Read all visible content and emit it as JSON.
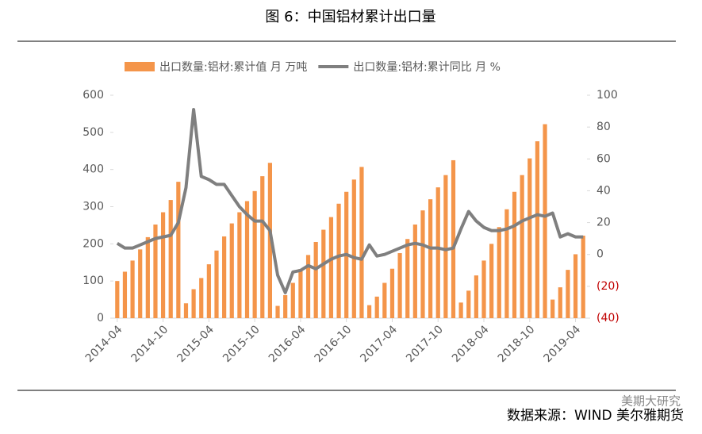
{
  "chart_data": {
    "type": "bar_line",
    "title": "图 6：中国铝材累计出口量",
    "source": "数据来源：WIND 美尔雅期货",
    "watermark": "美期大研究",
    "categories": [
      "2014-04",
      null,
      null,
      null,
      null,
      null,
      "2014-10",
      null,
      null,
      null,
      null,
      null,
      "2015-04",
      null,
      null,
      null,
      null,
      null,
      "2015-10",
      null,
      null,
      null,
      null,
      null,
      "2016-04",
      null,
      null,
      null,
      null,
      null,
      "2016-10",
      null,
      null,
      null,
      null,
      null,
      "2017-04",
      null,
      null,
      null,
      null,
      null,
      "2017-10",
      null,
      null,
      null,
      null,
      null,
      "2018-04",
      null,
      null,
      null,
      null,
      null,
      "2018-10",
      null,
      null,
      null,
      null,
      null,
      "2019-04",
      null
    ],
    "series": [
      {
        "name": "出口数量:铝材:累计值 月 万吨",
        "color": "#f4954a",
        "kind": "bar",
        "axis": "y",
        "values": [
          100,
          125,
          155,
          185,
          218,
          252,
          285,
          318,
          367,
          40,
          78,
          108,
          145,
          182,
          220,
          255,
          285,
          315,
          342,
          382,
          418,
          33,
          62,
          95,
          132,
          170,
          205,
          238,
          272,
          308,
          340,
          373,
          407,
          35,
          58,
          95,
          133,
          175,
          213,
          252,
          290,
          320,
          352,
          385,
          425,
          42,
          74,
          115,
          155,
          200,
          245,
          293,
          340,
          385,
          430,
          476,
          522,
          50,
          83,
          130,
          172,
          222
        ]
      },
      {
        "name": "出口数量:铝材:累计同比 月 %",
        "color": "#7f7f7f",
        "kind": "line",
        "axis": "y2",
        "values": [
          7,
          4,
          4,
          6,
          8,
          10,
          11,
          12,
          20,
          42,
          91,
          49,
          47,
          44,
          44,
          37,
          30,
          25,
          21,
          21,
          15,
          -13,
          -24,
          -11,
          -10,
          -7,
          -9,
          -6,
          -3,
          -1,
          0,
          -2,
          -3,
          6,
          -1,
          0,
          2,
          4,
          6,
          7,
          6,
          4,
          4,
          3,
          4,
          16,
          27,
          21,
          17,
          15,
          15,
          16,
          18,
          21,
          23,
          25,
          24,
          26,
          11,
          13,
          11,
          11
        ]
      }
    ],
    "ylim": [
      0,
      600
    ],
    "yticks": [
      0,
      100,
      200,
      300,
      400,
      500,
      600
    ],
    "y2lim": [
      -40,
      100
    ],
    "y2ticks": [
      {
        "value": -40,
        "label": "(40)"
      },
      {
        "value": -20,
        "label": "(20)"
      },
      0,
      20,
      40,
      60,
      80,
      100
    ],
    "y2_negative_label_color": "#c00000",
    "legend": "top"
  }
}
